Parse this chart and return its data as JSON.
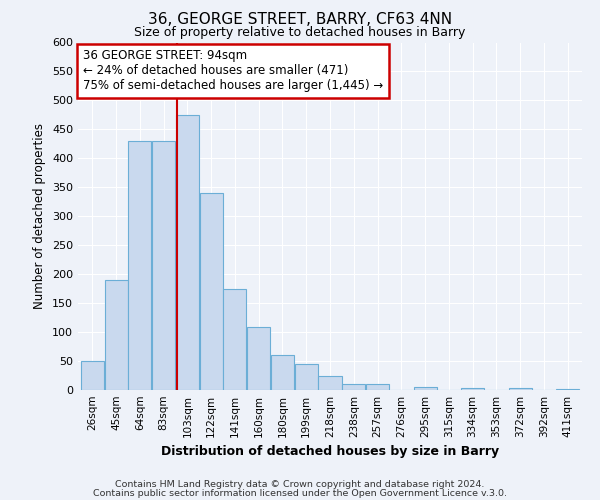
{
  "title": "36, GEORGE STREET, BARRY, CF63 4NN",
  "subtitle": "Size of property relative to detached houses in Barry",
  "xlabel": "Distribution of detached houses by size in Barry",
  "ylabel": "Number of detached properties",
  "bar_labels": [
    "26sqm",
    "45sqm",
    "64sqm",
    "83sqm",
    "103sqm",
    "122sqm",
    "141sqm",
    "160sqm",
    "180sqm",
    "199sqm",
    "218sqm",
    "238sqm",
    "257sqm",
    "276sqm",
    "295sqm",
    "315sqm",
    "334sqm",
    "353sqm",
    "372sqm",
    "392sqm",
    "411sqm"
  ],
  "bar_values": [
    50,
    190,
    430,
    430,
    475,
    340,
    175,
    108,
    60,
    45,
    25,
    10,
    10,
    0,
    5,
    0,
    3,
    0,
    3,
    0,
    2
  ],
  "bar_color": "#c9d9ee",
  "bar_edge_color": "#6baed6",
  "ylim": [
    0,
    600
  ],
  "yticks": [
    0,
    50,
    100,
    150,
    200,
    250,
    300,
    350,
    400,
    450,
    500,
    550,
    600
  ],
  "annotation_title": "36 GEORGE STREET: 94sqm",
  "annotation_line1": "← 24% of detached houses are smaller (471)",
  "annotation_line2": "75% of semi-detached houses are larger (1,445) →",
  "annotation_box_color": "#ffffff",
  "annotation_box_edge": "#cc0000",
  "footer1": "Contains HM Land Registry data © Crown copyright and database right 2024.",
  "footer2": "Contains public sector information licensed under the Open Government Licence v.3.0.",
  "background_color": "#eef2f9",
  "grid_color": "#ffffff",
  "red_line_index": 3.58
}
